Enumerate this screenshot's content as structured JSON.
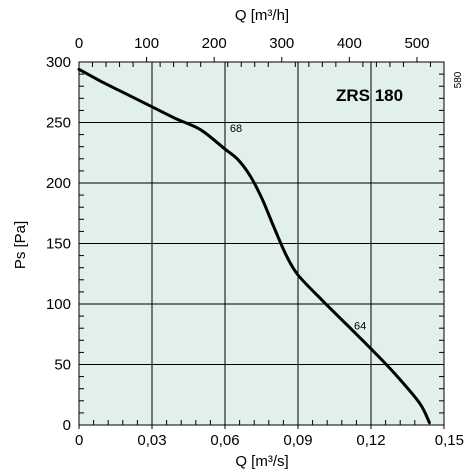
{
  "chart_data": {
    "type": "line",
    "model_label": "ZRS 180",
    "side_label": "580",
    "xlabel": "Q [m³/s]",
    "x2label": "Q [m³/h]",
    "ylabel": "Ps [Pa]",
    "xlim": [
      0,
      0.15
    ],
    "ylim": [
      0,
      300
    ],
    "x2lim": [
      0,
      540
    ],
    "x_ticks": [
      {
        "value": 0,
        "label": "0"
      },
      {
        "value": 0.03,
        "label": "0,03"
      },
      {
        "value": 0.06,
        "label": "0,06"
      },
      {
        "value": 0.09,
        "label": "0,09"
      },
      {
        "value": 0.12,
        "label": "0,12"
      },
      {
        "value": 0.15,
        "label": "0,15"
      }
    ],
    "x2_ticks": [
      {
        "value": 0,
        "label": "0"
      },
      {
        "value": 100,
        "label": "100"
      },
      {
        "value": 200,
        "label": "200"
      },
      {
        "value": 300,
        "label": "300"
      },
      {
        "value": 400,
        "label": "400"
      },
      {
        "value": 500,
        "label": "500"
      }
    ],
    "y_ticks": [
      {
        "value": 0,
        "label": "0"
      },
      {
        "value": 50,
        "label": "50"
      },
      {
        "value": 100,
        "label": "100"
      },
      {
        "value": 150,
        "label": "150"
      },
      {
        "value": 200,
        "label": "200"
      },
      {
        "value": 250,
        "label": "250"
      },
      {
        "value": 300,
        "label": "300"
      }
    ],
    "grid": true,
    "series": [
      {
        "x": [
          0,
          0.01,
          0.02,
          0.03,
          0.04,
          0.05,
          0.06,
          0.065,
          0.07,
          0.075,
          0.08,
          0.085,
          0.09,
          0.1,
          0.11,
          0.12,
          0.13,
          0.14,
          0.144
        ],
        "y": [
          294,
          283,
          273,
          263,
          253,
          244,
          228,
          220,
          207,
          188,
          164,
          141,
          124,
          103,
          83,
          63,
          42,
          18,
          2
        ]
      }
    ],
    "annotations": [
      {
        "text": "68",
        "x": 0.062,
        "y": 242
      },
      {
        "text": "64",
        "x": 0.113,
        "y": 79
      }
    ]
  }
}
